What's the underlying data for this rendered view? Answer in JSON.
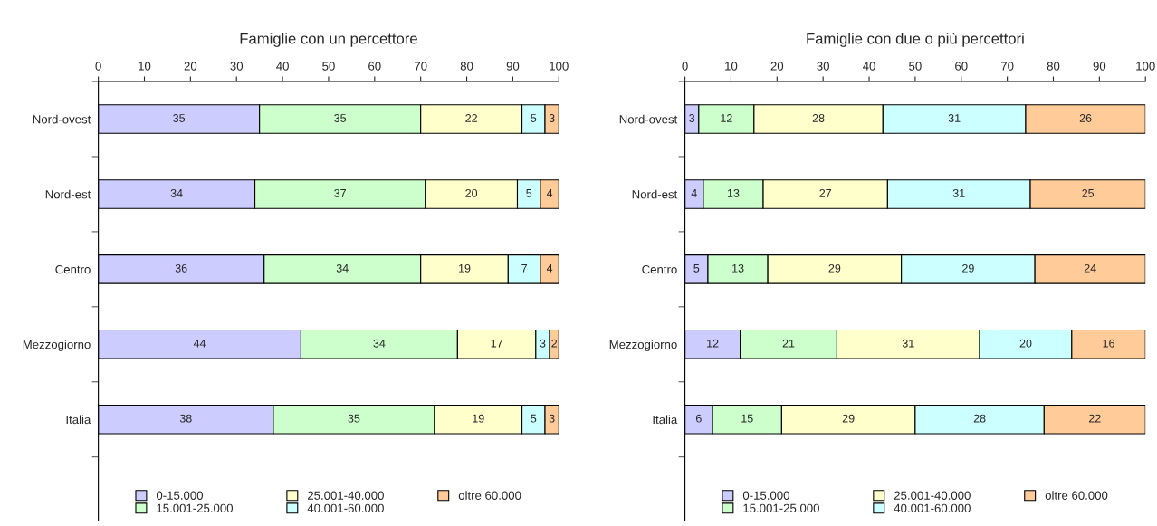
{
  "chart_data": [
    {
      "type": "bar",
      "title": "Famiglie con un percettore",
      "orientation": "horizontal",
      "stacked": true,
      "data_labels": true,
      "legend": "bottom",
      "grid": false,
      "categories": [
        "Nord-ovest",
        "Nord-est",
        "Centro",
        "Mezzogiorno",
        "Italia"
      ],
      "xlim": [
        0,
        100
      ],
      "xticks": [
        0,
        10,
        20,
        30,
        40,
        50,
        60,
        70,
        80,
        90,
        100
      ],
      "series": [
        {
          "name": "0-15.000",
          "color": "#ccccff",
          "values": [
            35,
            34,
            36,
            44,
            38
          ]
        },
        {
          "name": "15.001-25.000",
          "color": "#ccffcc",
          "values": [
            35,
            37,
            34,
            34,
            35
          ]
        },
        {
          "name": "25.001-40.000",
          "color": "#ffffcc",
          "values": [
            22,
            20,
            19,
            17,
            19
          ]
        },
        {
          "name": "40.001-60.000",
          "color": "#ccffff",
          "values": [
            5,
            5,
            7,
            3,
            5
          ]
        },
        {
          "name": "oltre 60.000",
          "color": "#ffcc99",
          "values": [
            3,
            4,
            4,
            2,
            3
          ]
        }
      ]
    },
    {
      "type": "bar",
      "title": "Famiglie con due o più percettori",
      "orientation": "horizontal",
      "stacked": true,
      "data_labels": true,
      "legend": "bottom",
      "grid": false,
      "categories": [
        "Nord-ovest",
        "Nord-est",
        "Centro",
        "Mezzogiorno",
        "Italia"
      ],
      "xlim": [
        0,
        100
      ],
      "xticks": [
        0,
        10,
        20,
        30,
        40,
        50,
        60,
        70,
        80,
        90,
        100
      ],
      "series": [
        {
          "name": "0-15.000",
          "color": "#ccccff",
          "values": [
            3,
            4,
            5,
            12,
            6
          ]
        },
        {
          "name": "15.001-25.000",
          "color": "#ccffcc",
          "values": [
            12,
            13,
            13,
            21,
            15
          ]
        },
        {
          "name": "25.001-40.000",
          "color": "#ffffcc",
          "values": [
            28,
            27,
            29,
            31,
            29
          ]
        },
        {
          "name": "40.001-60.000",
          "color": "#ccffff",
          "values": [
            31,
            31,
            29,
            20,
            28
          ]
        },
        {
          "name": "oltre 60.000",
          "color": "#ffcc99",
          "values": [
            26,
            25,
            24,
            16,
            22
          ]
        }
      ]
    }
  ]
}
